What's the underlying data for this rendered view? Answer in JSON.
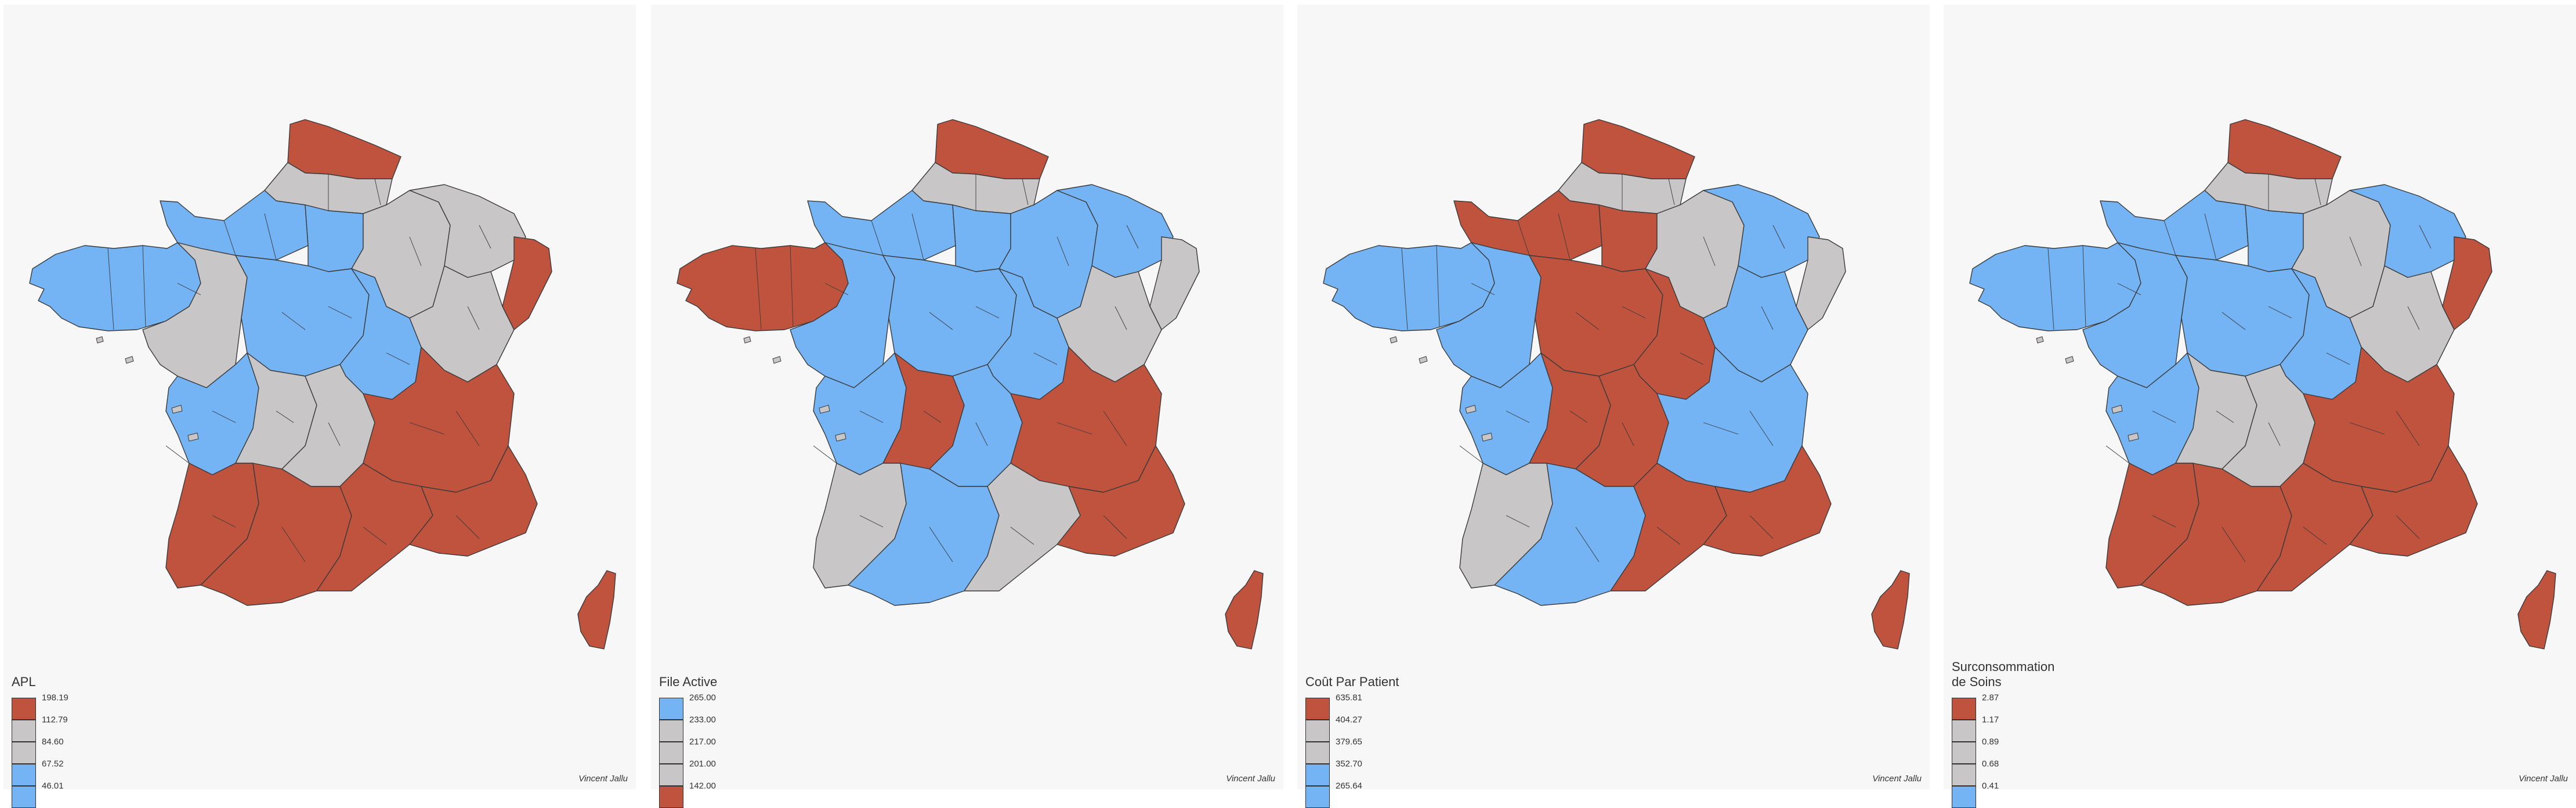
{
  "colors": {
    "red": "#c0533e",
    "grey": "#c8c6c6",
    "blue": "#74b4f5",
    "border": "#3a3a3a",
    "panel_background": "#f7f7f7"
  },
  "panels": [
    {
      "legend_title": "APL",
      "legend": [
        {
          "label": "198.19",
          "color": "red"
        },
        {
          "label": "112.79",
          "color": "grey"
        },
        {
          "label": "84.60",
          "color": "grey"
        },
        {
          "label": "67.52",
          "color": "blue"
        },
        {
          "label": "46.01",
          "color": "blue"
        }
      ],
      "credit": "Vincent Jallu",
      "regions": {
        "north": "red",
        "picardie": "grey",
        "normandie": "blue",
        "bretagne": "blue",
        "idf": "blue",
        "champagne": "grey",
        "lorraine": "grey",
        "alsace": "red",
        "loire": "grey",
        "centre": "blue",
        "bourgogne": "blue",
        "franche": "grey",
        "poitou": "blue",
        "limousin": "grey",
        "auvergne": "grey",
        "rhone": "red",
        "aquitaine": "red",
        "midi": "red",
        "languedoc": "red",
        "paca": "red",
        "corse": "red"
      }
    },
    {
      "legend_title": "File Active",
      "legend": [
        {
          "label": "265.00",
          "color": "blue"
        },
        {
          "label": "233.00",
          "color": "grey"
        },
        {
          "label": "217.00",
          "color": "grey"
        },
        {
          "label": "201.00",
          "color": "grey"
        },
        {
          "label": "142.00",
          "color": "red"
        }
      ],
      "credit": "Vincent Jallu",
      "regions": {
        "north": "red",
        "picardie": "grey",
        "normandie": "blue",
        "bretagne": "red",
        "idf": "blue",
        "champagne": "blue",
        "lorraine": "blue",
        "alsace": "grey",
        "loire": "blue",
        "centre": "blue",
        "bourgogne": "blue",
        "franche": "grey",
        "poitou": "blue",
        "limousin": "red",
        "auvergne": "blue",
        "rhone": "red",
        "aquitaine": "grey",
        "midi": "blue",
        "languedoc": "grey",
        "paca": "red",
        "corse": "red"
      }
    },
    {
      "legend_title": "Coût Par Patient",
      "legend": [
        {
          "label": "635.81",
          "color": "red"
        },
        {
          "label": "404.27",
          "color": "grey"
        },
        {
          "label": "379.65",
          "color": "grey"
        },
        {
          "label": "352.70",
          "color": "blue"
        },
        {
          "label": "265.64",
          "color": "blue"
        }
      ],
      "credit": "Vincent Jallu",
      "regions": {
        "north": "red",
        "picardie": "grey",
        "normandie": "red",
        "bretagne": "blue",
        "idf": "red",
        "champagne": "grey",
        "lorraine": "blue",
        "alsace": "grey",
        "loire": "blue",
        "centre": "red",
        "bourgogne": "red",
        "franche": "blue",
        "poitou": "blue",
        "limousin": "red",
        "auvergne": "red",
        "rhone": "blue",
        "aquitaine": "grey",
        "midi": "blue",
        "languedoc": "red",
        "paca": "red",
        "corse": "red"
      }
    },
    {
      "legend_title": "Surconsommation\nde Soins",
      "legend": [
        {
          "label": "2.87",
          "color": "red"
        },
        {
          "label": "1.17",
          "color": "grey"
        },
        {
          "label": "0.89",
          "color": "grey"
        },
        {
          "label": "0.68",
          "color": "grey"
        },
        {
          "label": "0.41",
          "color": "blue"
        }
      ],
      "credit": "Vincent Jallu",
      "regions": {
        "north": "red",
        "picardie": "grey",
        "normandie": "blue",
        "bretagne": "blue",
        "idf": "blue",
        "champagne": "grey",
        "lorraine": "blue",
        "alsace": "red",
        "loire": "blue",
        "centre": "blue",
        "bourgogne": "blue",
        "franche": "grey",
        "poitou": "blue",
        "limousin": "grey",
        "auvergne": "grey",
        "rhone": "red",
        "aquitaine": "red",
        "midi": "red",
        "languedoc": "red",
        "paca": "red",
        "corse": "red"
      }
    }
  ]
}
